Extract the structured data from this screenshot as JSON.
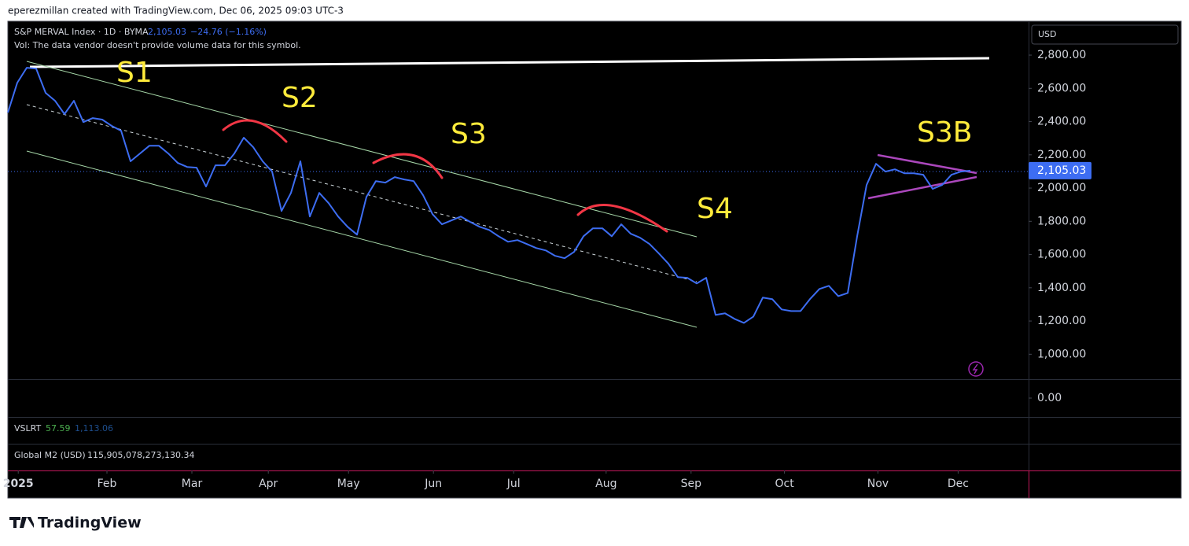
{
  "header": "eperezmillan created with TradingView.com, Dec 06, 2025 09:03 UTC-3",
  "chart_data": {
    "type": "line",
    "legend": {
      "symbol": "S&P MERVAL Index · 1D · BYMA",
      "price": "2,105.03",
      "change": "−24.76 (−1.16%)",
      "volume_note": "Vol: The data vendor doesn't provide volume data for this symbol."
    },
    "currency": "USD",
    "annotations": [
      "S1",
      "S2",
      "S3",
      "S4",
      "S3B"
    ],
    "series": [
      {
        "name": "S&P MERVAL Index",
        "color": "#3d6df2",
        "values": [
          2454,
          2634,
          2724,
          2719,
          2573,
          2525,
          2445,
          2525,
          2397,
          2421,
          2412,
          2374,
          2345,
          2161,
          2208,
          2255,
          2255,
          2208,
          2151,
          2127,
          2123,
          2009,
          2137,
          2137,
          2208,
          2303,
          2246,
          2161,
          2099,
          1862,
          1971,
          2161,
          1829,
          1971,
          1909,
          1829,
          1767,
          1720,
          1947,
          2042,
          2033,
          2066,
          2052,
          2042,
          1957,
          1843,
          1782,
          1805,
          1829,
          1796,
          1767,
          1748,
          1710,
          1677,
          1687,
          1663,
          1639,
          1625,
          1592,
          1578,
          1616,
          1710,
          1758,
          1758,
          1710,
          1782,
          1725,
          1701,
          1663,
          1606,
          1545,
          1464,
          1460,
          1426,
          1460,
          1237,
          1246,
          1213,
          1189,
          1227,
          1341,
          1332,
          1270,
          1260,
          1260,
          1332,
          1393,
          1412,
          1350,
          1369,
          1710,
          2018,
          2146,
          2099,
          2113,
          2089,
          2089,
          2080,
          1995,
          2018,
          2080,
          2099,
          2105.03
        ]
      }
    ],
    "price_tag": {
      "value": 2105.03,
      "label": "2,105.03"
    },
    "xlim": [
      0,
      102
    ],
    "xticks": [
      {
        "value": 1.1,
        "label": "2025"
      },
      {
        "value": 10.5,
        "label": "Feb"
      },
      {
        "value": 19.5,
        "label": "Mar"
      },
      {
        "value": 27.6,
        "label": "Apr"
      },
      {
        "value": 36.1,
        "label": "May"
      },
      {
        "value": 45.1,
        "label": "Jun"
      },
      {
        "value": 53.6,
        "label": "Jul"
      },
      {
        "value": 63.4,
        "label": "Aug"
      },
      {
        "value": 72.4,
        "label": "Sep"
      },
      {
        "value": 82.3,
        "label": "Oct"
      },
      {
        "value": 92.2,
        "label": "Nov"
      },
      {
        "value": 100.7,
        "label": "Dec"
      }
    ],
    "ylim": [
      850,
      2999
    ],
    "yticks": [
      {
        "value": 2800,
        "label": "2,800.00"
      },
      {
        "value": 2600,
        "label": "2,600.00"
      },
      {
        "value": 2400,
        "label": "2,400.00"
      },
      {
        "value": 2200,
        "label": "2,200.00"
      },
      {
        "value": 2000,
        "label": "2,000.00"
      },
      {
        "value": 1800,
        "label": "1,800.00"
      },
      {
        "value": 1600,
        "label": "1,600.00"
      },
      {
        "value": 1400,
        "label": "1,400.00"
      },
      {
        "value": 1200,
        "label": "1,200.00"
      },
      {
        "value": 1000,
        "label": "1,000.00"
      }
    ],
    "volume_pane": {
      "ticks": [
        {
          "value": 0,
          "label": "0.00"
        }
      ]
    },
    "indicators": [
      {
        "name": "VSLRT",
        "value": "57.59",
        "value2": "1,113.06"
      },
      {
        "name": "Global M2 (USD)",
        "value": "115,905,078,273,130.34"
      }
    ]
  },
  "footer": "TradingView"
}
